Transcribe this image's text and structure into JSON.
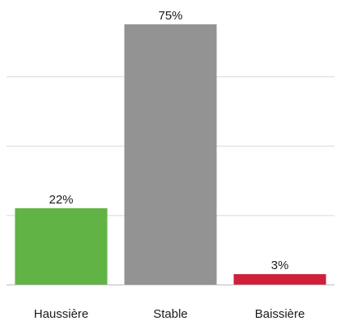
{
  "chart_data": {
    "type": "bar",
    "categories": [
      "Haussière",
      "Stable",
      "Baissière"
    ],
    "values": [
      22,
      75,
      3
    ],
    "value_labels": [
      "22%",
      "75%",
      "3%"
    ],
    "colors": [
      "#62b346",
      "#939393",
      "#cf1f3b"
    ],
    "ylim": [
      0,
      75
    ],
    "grid": true,
    "gridlines": [
      0,
      20,
      40,
      60
    ],
    "title": "",
    "xlabel": "",
    "ylabel": ""
  }
}
